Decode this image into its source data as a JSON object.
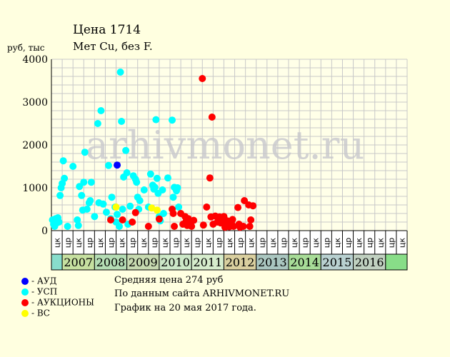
{
  "chart_data": {
    "type": "scatter",
    "title": "Цена 1714",
    "subtitle": "Мет Cu, без F.",
    "ylabel": "руб, тыс",
    "ylim": [
      0,
      4000
    ],
    "yticks": [
      0,
      1000,
      2000,
      3000,
      4000
    ],
    "grid": true,
    "half_year_labels": [
      "цк",
      "цр",
      "цк",
      "цр",
      "цк",
      "цр",
      "цк",
      "цр",
      "цк",
      "цр",
      "цк",
      "цр",
      "цк",
      "цр",
      "цк",
      "цр",
      "цк",
      "цр",
      "цк",
      "цр",
      "цк",
      "цр",
      "цк",
      "цр",
      "цк",
      "цр",
      "цк",
      "цр",
      "цк",
      "цр",
      "цк",
      "цр",
      "цк"
    ],
    "years": [
      {
        "label": "2007",
        "color": "#c6e0a0"
      },
      {
        "label": "2008",
        "color": "#b4dcb4"
      },
      {
        "label": "2009",
        "color": "#c6d9b0"
      },
      {
        "label": "2010",
        "color": "#cde8c8"
      },
      {
        "label": "2011",
        "color": "#d6eccc"
      },
      {
        "label": "2012",
        "color": "#d9cf9f"
      },
      {
        "label": "2013",
        "color": "#aac6c0"
      },
      {
        "label": "2014",
        "color": "#a8dc98"
      },
      {
        "label": "2015",
        "color": "#b8d0d0"
      },
      {
        "label": "2016",
        "color": "#c0d0c0"
      }
    ],
    "series": [
      {
        "name": "АУД",
        "color": "#0000ff",
        "points": [
          [
            6.1,
            1530
          ]
        ]
      },
      {
        "name": "УСП",
        "color": "#00ffff",
        "points": [
          [
            0.1,
            250
          ],
          [
            0.2,
            150
          ],
          [
            0.3,
            100
          ],
          [
            0.4,
            280
          ],
          [
            0.5,
            180
          ],
          [
            0.6,
            300
          ],
          [
            0.7,
            200
          ],
          [
            0.8,
            820
          ],
          [
            0.9,
            1000
          ],
          [
            1.0,
            1100
          ],
          [
            1.1,
            1630
          ],
          [
            1.2,
            1220
          ],
          [
            1.5,
            100
          ],
          [
            2.0,
            1500
          ],
          [
            2.4,
            250
          ],
          [
            2.5,
            120
          ],
          [
            2.6,
            1030
          ],
          [
            2.8,
            820
          ],
          [
            2.9,
            480
          ],
          [
            3.0,
            1130
          ],
          [
            3.1,
            1830
          ],
          [
            3.3,
            500
          ],
          [
            3.5,
            650
          ],
          [
            3.6,
            700
          ],
          [
            3.7,
            1130
          ],
          [
            4.0,
            330
          ],
          [
            4.3,
            2500
          ],
          [
            4.4,
            650
          ],
          [
            4.6,
            2800
          ],
          [
            4.8,
            620
          ],
          [
            5.1,
            430
          ],
          [
            5.3,
            1520
          ],
          [
            5.5,
            280
          ],
          [
            5.6,
            780
          ],
          [
            5.9,
            550
          ],
          [
            6.0,
            200
          ],
          [
            6.1,
            380
          ],
          [
            6.3,
            100
          ],
          [
            6.4,
            3700
          ],
          [
            6.5,
            2550
          ],
          [
            6.6,
            500
          ],
          [
            6.7,
            1250
          ],
          [
            6.9,
            1870
          ],
          [
            7.0,
            1350
          ],
          [
            7.1,
            150
          ],
          [
            7.3,
            570
          ],
          [
            7.6,
            1280
          ],
          [
            7.8,
            1200
          ],
          [
            7.9,
            1130
          ],
          [
            8.0,
            780
          ],
          [
            8.1,
            500
          ],
          [
            8.2,
            700
          ],
          [
            8.6,
            950
          ],
          [
            9.0,
            550
          ],
          [
            9.2,
            1320
          ],
          [
            9.4,
            1060
          ],
          [
            9.5,
            970
          ],
          [
            9.6,
            1010
          ],
          [
            9.7,
            2590
          ],
          [
            9.8,
            1220
          ],
          [
            9.9,
            870
          ],
          [
            10.0,
            330
          ],
          [
            10.1,
            230
          ],
          [
            10.3,
            950
          ],
          [
            10.4,
            400
          ],
          [
            10.8,
            1230
          ],
          [
            11.2,
            2580
          ],
          [
            11.3,
            780
          ],
          [
            11.4,
            1010
          ],
          [
            11.6,
            930
          ],
          [
            11.7,
            1000
          ],
          [
            11.8,
            550
          ]
        ]
      },
      {
        "name": "АУКЦИОНЫ",
        "color": "#ff0000",
        "points": [
          [
            5.5,
            250
          ],
          [
            6.6,
            250
          ],
          [
            7.5,
            200
          ],
          [
            7.8,
            420
          ],
          [
            9.0,
            100
          ],
          [
            10.0,
            270
          ],
          [
            11.2,
            500
          ],
          [
            11.3,
            400
          ],
          [
            11.4,
            100
          ],
          [
            12.0,
            400
          ],
          [
            12.2,
            150
          ],
          [
            12.4,
            330
          ],
          [
            12.5,
            220
          ],
          [
            12.6,
            120
          ],
          [
            12.7,
            280
          ],
          [
            12.8,
            180
          ],
          [
            12.9,
            200
          ],
          [
            13.0,
            100
          ],
          [
            13.2,
            240
          ],
          [
            14.0,
            3550
          ],
          [
            14.1,
            130
          ],
          [
            14.4,
            550
          ],
          [
            14.7,
            1230
          ],
          [
            14.8,
            320
          ],
          [
            14.9,
            2650
          ],
          [
            15.0,
            150
          ],
          [
            15.2,
            340
          ],
          [
            15.4,
            200
          ],
          [
            15.6,
            320
          ],
          [
            15.7,
            180
          ],
          [
            15.9,
            200
          ],
          [
            16.0,
            330
          ],
          [
            16.1,
            80
          ],
          [
            16.3,
            230
          ],
          [
            16.5,
            90
          ],
          [
            16.7,
            180
          ],
          [
            16.8,
            260
          ],
          [
            16.9,
            100
          ],
          [
            17.3,
            540
          ],
          [
            17.4,
            150
          ],
          [
            17.5,
            80
          ],
          [
            17.8,
            100
          ],
          [
            17.9,
            700
          ],
          [
            18.3,
            600
          ],
          [
            18.4,
            100
          ],
          [
            18.5,
            250
          ],
          [
            18.7,
            580
          ]
        ]
      },
      {
        "name": "ВС",
        "color": "#ffff00",
        "points": [
          [
            6.0,
            550
          ],
          [
            9.3,
            530
          ],
          [
            9.8,
            480
          ]
        ]
      }
    ]
  },
  "notes": [
    "Средняя цена 274 руб",
    "По данным сайта ARHIVMONET.RU",
    "График на 20 мая 2017 года."
  ],
  "watermark": "arhivmonet.ru"
}
